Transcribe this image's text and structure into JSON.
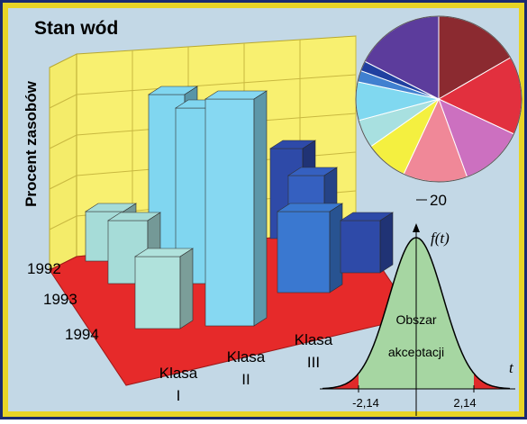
{
  "title": "Stan wód",
  "y_axis_label": "Procent zasobów",
  "years": [
    "1992",
    "1993",
    "1994"
  ],
  "classes": [
    [
      "Klasa",
      "I"
    ],
    [
      "Klasa",
      "II"
    ],
    [
      "Klasa",
      "III"
    ]
  ],
  "pie_tick": "20",
  "distribution": {
    "function_label": "f(t)",
    "region_label": [
      "Obszar",
      "akceptacji"
    ],
    "axis_label": "t",
    "critical_values": [
      "-2,14",
      "2,14"
    ]
  }
}
